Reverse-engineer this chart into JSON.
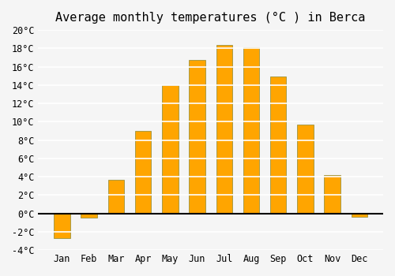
{
  "months": [
    "Jan",
    "Feb",
    "Mar",
    "Apr",
    "May",
    "Jun",
    "Jul",
    "Aug",
    "Sep",
    "Oct",
    "Nov",
    "Dec"
  ],
  "values": [
    -2.7,
    -0.5,
    3.7,
    9.0,
    14.0,
    16.7,
    18.4,
    18.1,
    14.9,
    9.7,
    4.2,
    -0.4
  ],
  "bar_color": "#FFA500",
  "bar_edge_color": "#888833",
  "title": "Average monthly temperatures (°C ) in Berca",
  "ylim": [
    -4,
    20
  ],
  "yticks": [
    -4,
    -2,
    0,
    2,
    4,
    6,
    8,
    10,
    12,
    14,
    16,
    18,
    20
  ],
  "background_color": "#f5f5f5",
  "grid_color": "#ffffff",
  "title_fontsize": 11,
  "tick_fontsize": 8.5,
  "font_family": "monospace"
}
